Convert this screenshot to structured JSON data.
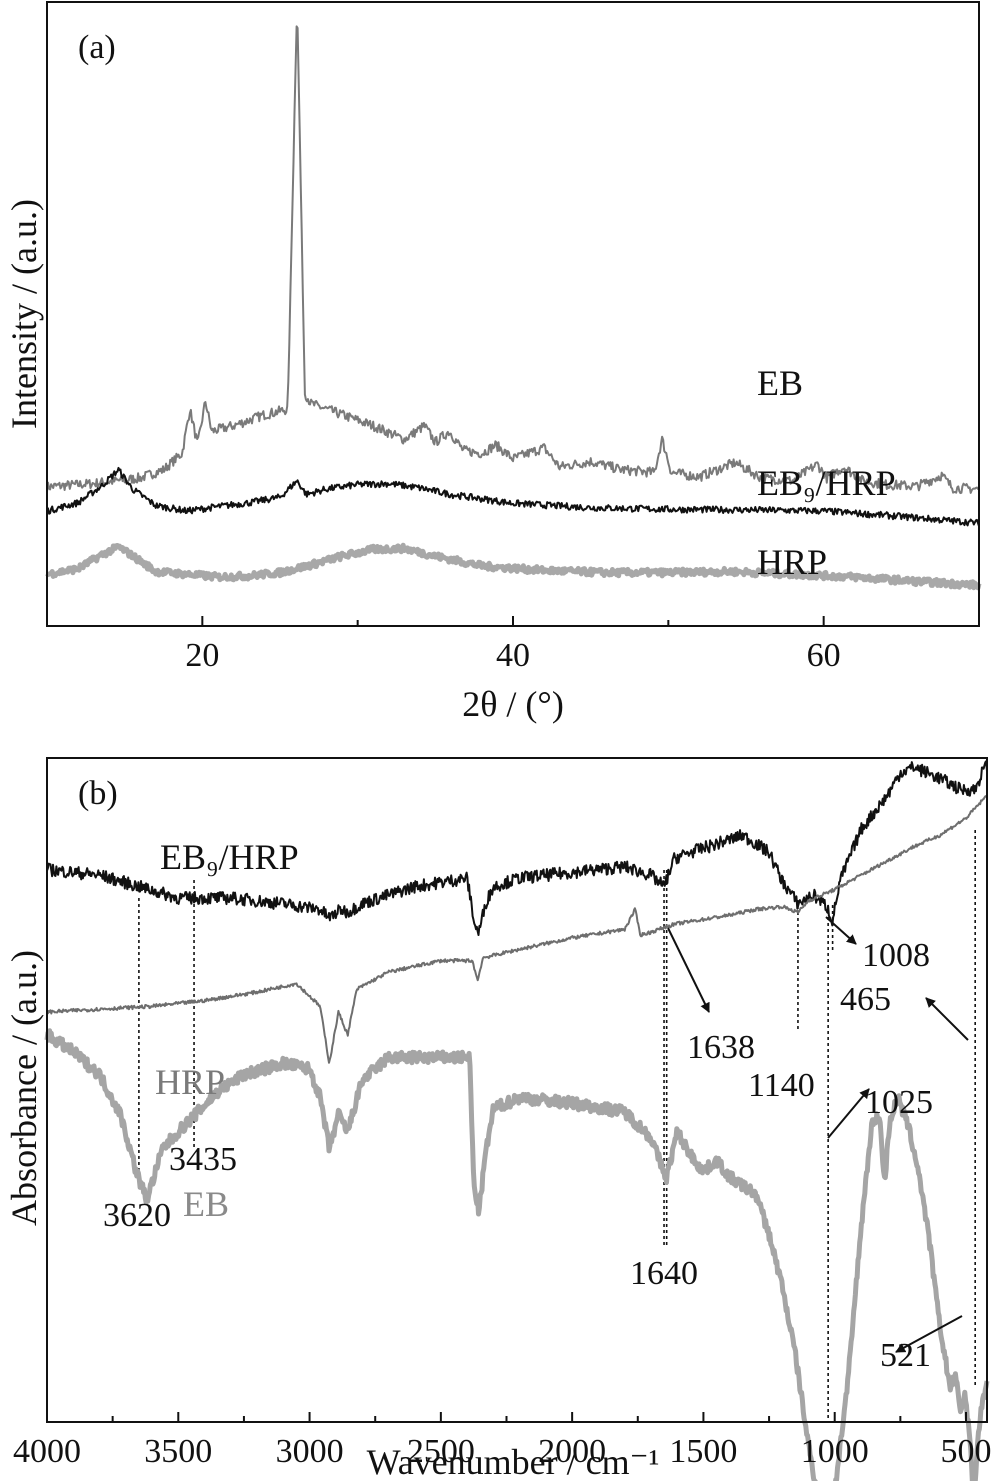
{
  "chart_data": [
    {
      "type": "line",
      "panel_label": "(a)",
      "xlabel": "2θ / (°)",
      "ylabel": "Intensity / (a.u.)",
      "xlim": [
        10,
        70
      ],
      "x_ticks": [
        20,
        40,
        60
      ],
      "y_ticks": [],
      "grid": false,
      "series": [
        {
          "name": "EB",
          "color": "#7a7a7a",
          "x": [
            10,
            13,
            16,
            17.5,
            18.7,
            19.2,
            19.7,
            20.2,
            20.6,
            22,
            24,
            25.5,
            26.1,
            26.6,
            27,
            29,
            31,
            33,
            34.3,
            35,
            35.9,
            36.8,
            38,
            38.9,
            40,
            42,
            43,
            45,
            47,
            49.1,
            49.6,
            50.2,
            52,
            54.3,
            56,
            58,
            59.6,
            60.2,
            61.3,
            62.5,
            64,
            66,
            67.6,
            68.3,
            70
          ],
          "y": [
            0.44,
            0.5,
            0.6,
            0.75,
            1.05,
            1.85,
            1.2,
            2.0,
            1.45,
            1.55,
            1.75,
            1.85,
            9.3,
            2.15,
            1.95,
            1.75,
            1.55,
            1.3,
            1.55,
            1.25,
            1.45,
            1.1,
            1.05,
            1.2,
            0.95,
            1.15,
            0.8,
            0.9,
            0.75,
            0.7,
            1.3,
            0.7,
            0.62,
            0.88,
            0.6,
            0.55,
            0.85,
            0.6,
            0.8,
            0.55,
            0.48,
            0.45,
            0.65,
            0.42,
            0.4
          ]
        },
        {
          "name": "EB₉/HRP",
          "color": "#111111",
          "x": [
            10,
            12,
            13.5,
            14.6,
            15.5,
            17,
            19,
            21,
            23,
            25,
            26.1,
            26.7,
            28,
            30,
            32,
            34,
            36,
            40,
            45,
            50,
            55,
            60,
            65,
            70
          ],
          "y": [
            0.0,
            0.15,
            0.45,
            0.75,
            0.4,
            0.1,
            0.0,
            0.08,
            0.15,
            0.25,
            0.55,
            0.3,
            0.4,
            0.48,
            0.5,
            0.42,
            0.3,
            0.14,
            0.06,
            0.03,
            0.02,
            0.0,
            -0.1,
            -0.22
          ]
        },
        {
          "name": "HRP",
          "color": "#a8a8a8",
          "x": [
            10,
            12,
            13.5,
            14.6,
            15.7,
            17,
            19,
            21,
            23,
            25,
            27,
            29,
            31,
            33,
            35,
            38,
            42,
            46,
            50,
            54,
            58,
            62,
            66,
            70
          ],
          "y": [
            -1.15,
            -1.05,
            -0.8,
            -0.65,
            -0.85,
            -1.1,
            -1.15,
            -1.2,
            -1.18,
            -1.12,
            -0.98,
            -0.82,
            -0.7,
            -0.68,
            -0.82,
            -1.0,
            -1.08,
            -1.12,
            -1.12,
            -1.1,
            -1.15,
            -1.2,
            -1.28,
            -1.35
          ]
        }
      ]
    },
    {
      "type": "line",
      "panel_label": "(b)",
      "xlabel": "Wavenumber / cm⁻¹",
      "ylabel": "Absorbance / (a.u.)",
      "xlim": [
        4000,
        420
      ],
      "x_ticks": [
        4000,
        3500,
        3000,
        2500,
        2000,
        1500,
        1000,
        500
      ],
      "y_ticks": [],
      "grid": false,
      "series": [
        {
          "name": "EB₉/HRP",
          "color": "#111111",
          "x": [
            4000,
            3800,
            3650,
            3500,
            3300,
            3100,
            2960,
            2925,
            2880,
            2855,
            2800,
            2600,
            2400,
            2370,
            2355,
            2330,
            2300,
            2200,
            2000,
            1800,
            1700,
            1650,
            1610,
            1550,
            1450,
            1350,
            1250,
            1200,
            1140,
            1080,
            1030,
            1008,
            980,
            900,
            800,
            750,
            700,
            600,
            520,
            465,
            430
          ],
          "y": [
            5.5,
            5.4,
            5.2,
            5.0,
            5.0,
            4.9,
            4.8,
            4.65,
            4.8,
            4.75,
            4.9,
            5.2,
            5.35,
            4.5,
            4.4,
            4.9,
            5.2,
            5.35,
            5.45,
            5.55,
            5.4,
            5.2,
            5.7,
            5.8,
            5.95,
            6.1,
            5.8,
            5.3,
            4.9,
            5.05,
            4.85,
            4.6,
            5.3,
            6.2,
            6.8,
            7.2,
            7.3,
            7.1,
            6.9,
            6.9,
            7.3
          ]
        },
        {
          "name": "HRP",
          "color": "#6e6e6e",
          "x": [
            4000,
            3800,
            3600,
            3400,
            3200,
            3050,
            2960,
            2925,
            2890,
            2855,
            2820,
            2700,
            2500,
            2380,
            2360,
            2340,
            2200,
            2000,
            1800,
            1760,
            1740,
            1700,
            1640,
            1600,
            1400,
            1300,
            1200,
            1140,
            1100,
            1000,
            900,
            800,
            700,
            600,
            500,
            420
          ],
          "y": [
            3.0,
            3.05,
            3.1,
            3.2,
            3.35,
            3.5,
            3.1,
            2.1,
            3.0,
            2.6,
            3.4,
            3.7,
            3.9,
            3.9,
            3.55,
            3.95,
            4.1,
            4.3,
            4.45,
            4.8,
            4.35,
            4.4,
            4.5,
            4.55,
            4.7,
            4.8,
            4.85,
            4.75,
            4.95,
            5.15,
            5.4,
            5.65,
            5.9,
            6.1,
            6.4,
            6.8
          ]
        },
        {
          "name": "EB",
          "color": "#a5a5a5",
          "x": [
            4000,
            3900,
            3800,
            3720,
            3660,
            3620,
            3560,
            3500,
            3435,
            3350,
            3250,
            3100,
            3000,
            2960,
            2925,
            2890,
            2855,
            2800,
            2700,
            2450,
            2390,
            2375,
            2355,
            2330,
            2300,
            2200,
            2000,
            1800,
            1700,
            1660,
            1640,
            1600,
            1550,
            1500,
            1450,
            1400,
            1300,
            1250,
            1200,
            1150,
            1100,
            1060,
            1040,
            1025,
            1000,
            950,
            900,
            860,
            830,
            810,
            790,
            760,
            720,
            680,
            640,
            600,
            560,
            540,
            521,
            505,
            490,
            470,
            455,
            440,
            420
          ],
          "y": [
            2.6,
            2.3,
            1.9,
            1.2,
            0.2,
            -0.3,
            0.6,
            0.9,
            1.2,
            1.6,
            1.9,
            2.1,
            2.0,
            1.5,
            0.6,
            1.2,
            0.9,
            1.8,
            2.2,
            2.2,
            2.2,
            0.0,
            -0.5,
            0.5,
            1.3,
            1.5,
            1.4,
            1.25,
            0.8,
            0.3,
            0.1,
            0.9,
            0.5,
            0.2,
            0.4,
            0.1,
            -0.2,
            -0.9,
            -1.8,
            -3.0,
            -4.6,
            -5.6,
            -6.0,
            -6.3,
            -5.4,
            -3.5,
            -0.8,
            1.0,
            1.2,
            0.0,
            1.1,
            1.5,
            1.0,
            0.2,
            -1.0,
            -2.5,
            -3.6,
            -3.4,
            -4.0,
            -3.7,
            -4.2,
            -5.6,
            -4.5,
            -3.9,
            -3.5
          ]
        }
      ],
      "annotations": {
        "peaks": [
          {
            "label": "3620",
            "x": 3650
          },
          {
            "label": "3435",
            "x": 3440
          },
          {
            "label": "1638",
            "x": 1650
          },
          {
            "label": "1640",
            "x": 1640
          },
          {
            "label": "1140",
            "x": 1140
          },
          {
            "label": "1025",
            "x": 1025
          },
          {
            "label": "1008",
            "x": 1010
          },
          {
            "label": "465",
            "x": 465
          },
          {
            "label": "521",
            "x": 490
          }
        ]
      }
    }
  ]
}
